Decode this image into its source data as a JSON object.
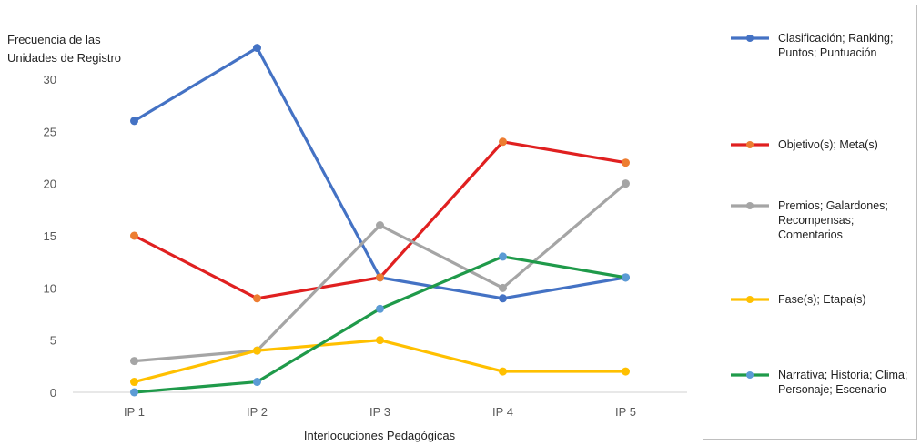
{
  "chart_data": {
    "type": "line",
    "title": "",
    "ylabel": "Frecuencia de las Unidades de Registro",
    "xlabel": "Interlocuciones Pedagógicas",
    "categories": [
      "IP 1",
      "IP 2",
      "IP 3",
      "IP 4",
      "IP 5"
    ],
    "yticks": [
      0,
      5,
      10,
      15,
      20,
      25,
      30
    ],
    "ylim": [
      0,
      30
    ],
    "grid": false,
    "legend_position": "right",
    "series": [
      {
        "name": "Clasificación; Ranking; Puntos; Puntuación",
        "values": [
          26,
          33,
          11,
          9,
          11
        ],
        "line_color": "#4472c4",
        "marker_color": "#4472c4"
      },
      {
        "name": "Objetivo(s); Meta(s)",
        "values": [
          15,
          9,
          11,
          24,
          22
        ],
        "line_color": "#e02020",
        "marker_color": "#ed7d31"
      },
      {
        "name": "Premios; Galardones; Recompensas; Comentarios",
        "values": [
          3,
          4,
          16,
          10,
          20
        ],
        "line_color": "#a5a5a5",
        "marker_color": "#a5a5a5"
      },
      {
        "name": "Fase(s); Etapa(s)",
        "values": [
          1,
          4,
          5,
          2,
          2
        ],
        "line_color": "#ffc000",
        "marker_color": "#ffc000"
      },
      {
        "name": "Narrativa; Historia; Clima; Personaje; Escenario",
        "values": [
          0,
          1,
          8,
          13,
          11
        ],
        "line_color": "#1f9a4a",
        "marker_color": "#5b9bd5"
      }
    ]
  }
}
